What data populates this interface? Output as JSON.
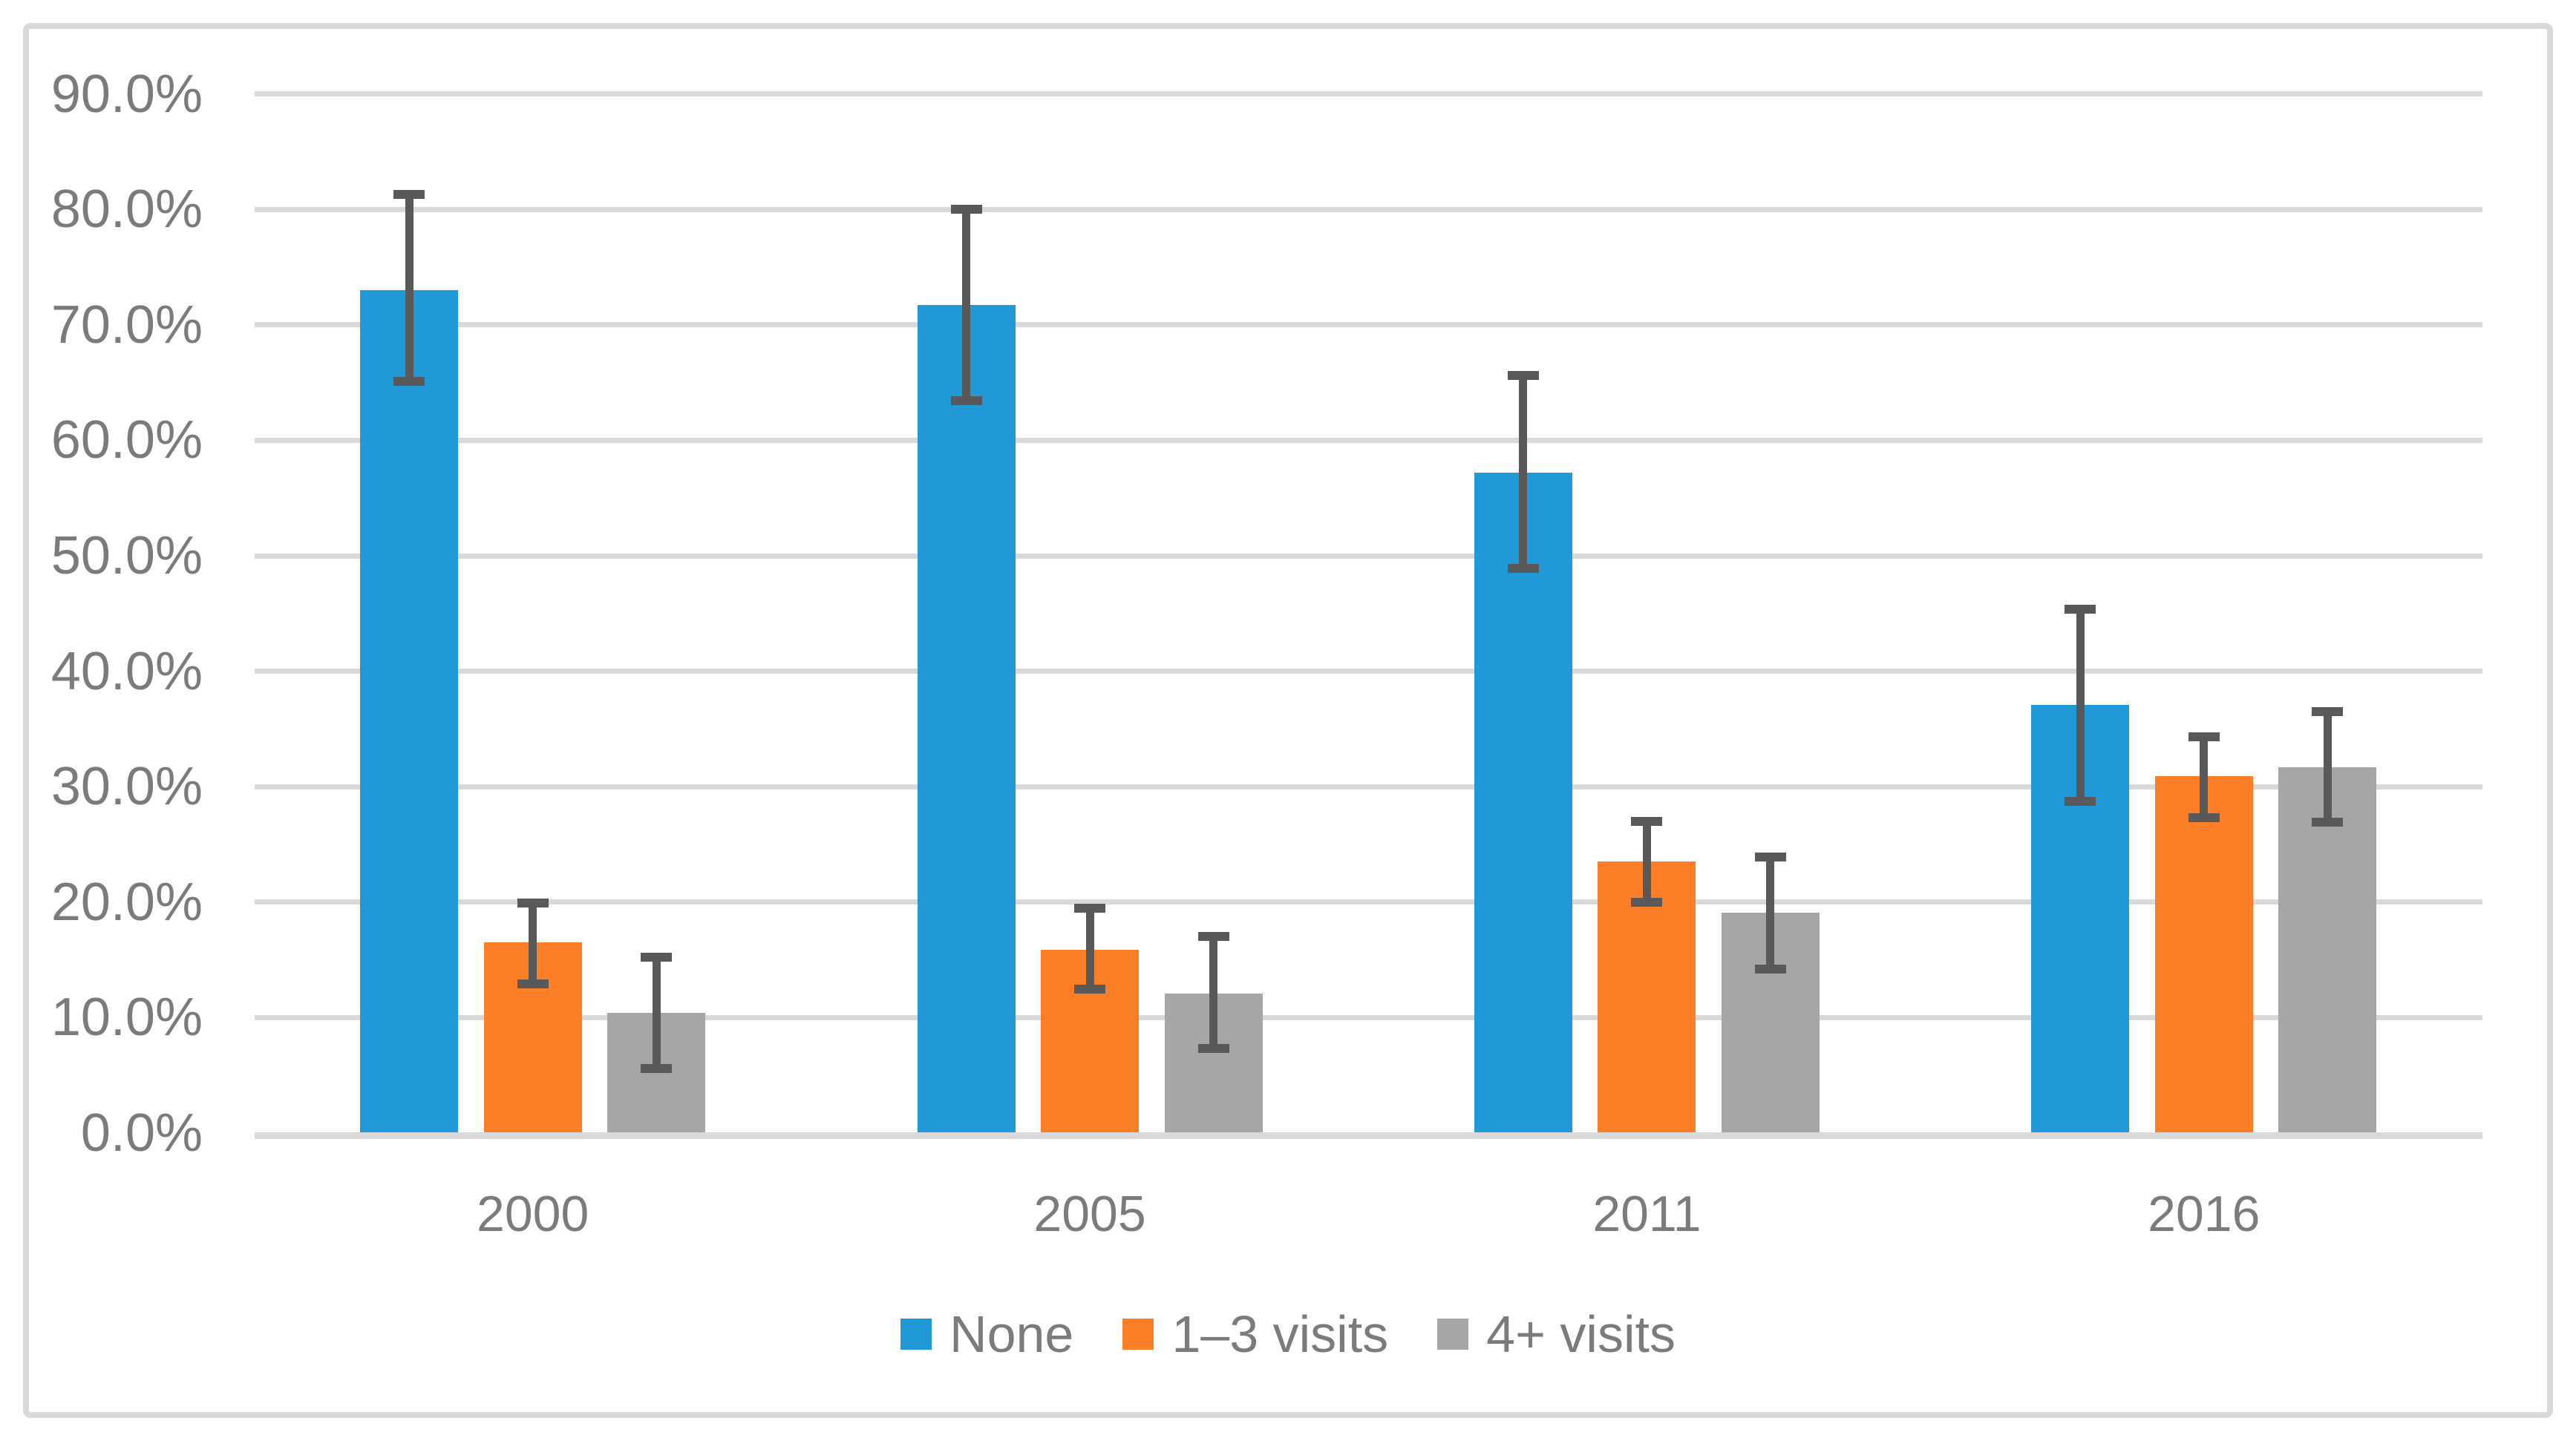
{
  "figure": {
    "background": "#FFFFFF",
    "border_color": "#D9D9D9"
  },
  "chart_data": {
    "type": "bar",
    "title": "",
    "xlabel": "",
    "ylabel": "",
    "categories": [
      "2000",
      "2005",
      "2011",
      "2016"
    ],
    "series": [
      {
        "name": "None",
        "color": "#2199D6",
        "values": [
          73.0,
          71.7,
          57.2,
          37.1
        ],
        "ci_low": [
          65.1,
          63.4,
          48.9,
          28.7
        ],
        "ci_high": [
          81.3,
          80.0,
          65.6,
          45.4
        ]
      },
      {
        "name": "1–3 visits",
        "color": "#FC7E26",
        "values": [
          16.5,
          15.9,
          23.5,
          30.9
        ],
        "ci_low": [
          12.9,
          12.5,
          20.0,
          27.3
        ],
        "ci_high": [
          19.9,
          19.5,
          27.0,
          34.3
        ]
      },
      {
        "name": "4+ visits",
        "color": "#A6A6A6",
        "values": [
          10.4,
          12.1,
          19.1,
          31.7
        ],
        "ci_low": [
          5.6,
          7.3,
          14.2,
          26.9
        ],
        "ci_high": [
          15.2,
          17.0,
          23.9,
          36.5
        ]
      }
    ],
    "y_ticks": [
      "0.0%",
      "10.0%",
      "20.0%",
      "30.0%",
      "40.0%",
      "50.0%",
      "60.0%",
      "70.0%",
      "80.0%",
      "90.0%"
    ],
    "ylim": [
      0,
      90
    ],
    "grid": true,
    "legend_position": "bottom",
    "error_bars": true,
    "gridline_color": "#D9D9D9",
    "axis_line_color": "#D9D9D9",
    "error_bar_color": "#595959",
    "text_color": "#7B7B7B"
  }
}
